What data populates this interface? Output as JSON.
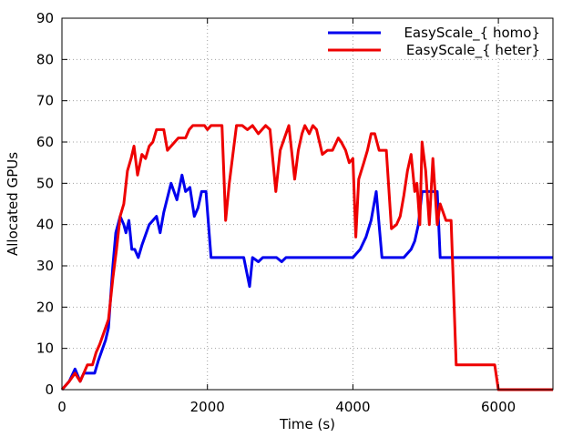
{
  "chart_data": {
    "type": "line",
    "xlabel": "Time (s)",
    "ylabel": "Allocated GPUs",
    "xlim": [
      0,
      6750
    ],
    "ylim": [
      0,
      90
    ],
    "xticks": [
      0,
      2000,
      4000,
      6000
    ],
    "yticks": [
      0,
      10,
      20,
      30,
      40,
      50,
      60,
      70,
      80,
      90
    ],
    "grid": "dotted",
    "legend_position": "top-right",
    "series": [
      {
        "name": "EasyScale_{ homo}",
        "color": "#0000ee",
        "points": [
          [
            0,
            0
          ],
          [
            100,
            2
          ],
          [
            180,
            5
          ],
          [
            250,
            2
          ],
          [
            300,
            4
          ],
          [
            450,
            4
          ],
          [
            500,
            7
          ],
          [
            600,
            12
          ],
          [
            640,
            15
          ],
          [
            700,
            30
          ],
          [
            740,
            38
          ],
          [
            800,
            42
          ],
          [
            850,
            40
          ],
          [
            880,
            38
          ],
          [
            920,
            41
          ],
          [
            960,
            34
          ],
          [
            1000,
            34
          ],
          [
            1050,
            32
          ],
          [
            1100,
            35
          ],
          [
            1200,
            40
          ],
          [
            1300,
            42
          ],
          [
            1350,
            38
          ],
          [
            1400,
            43
          ],
          [
            1500,
            50
          ],
          [
            1580,
            46
          ],
          [
            1650,
            52
          ],
          [
            1700,
            48
          ],
          [
            1760,
            49
          ],
          [
            1820,
            42
          ],
          [
            1870,
            44
          ],
          [
            1920,
            48
          ],
          [
            1980,
            48
          ],
          [
            2050,
            32
          ],
          [
            2500,
            32
          ],
          [
            2580,
            25
          ],
          [
            2620,
            32
          ],
          [
            2700,
            31
          ],
          [
            2760,
            32
          ],
          [
            2950,
            32
          ],
          [
            3020,
            31
          ],
          [
            3080,
            32
          ],
          [
            4000,
            32
          ],
          [
            4100,
            34
          ],
          [
            4180,
            37
          ],
          [
            4250,
            41
          ],
          [
            4320,
            48
          ],
          [
            4400,
            32
          ],
          [
            4700,
            32
          ],
          [
            4750,
            33
          ],
          [
            4800,
            34
          ],
          [
            4850,
            36
          ],
          [
            4900,
            40
          ],
          [
            4950,
            48
          ],
          [
            5000,
            48
          ],
          [
            5050,
            48
          ],
          [
            5100,
            48
          ],
          [
            5160,
            48
          ],
          [
            5200,
            32
          ],
          [
            6750,
            32
          ]
        ]
      },
      {
        "name": "EasyScale_{ heter}",
        "color": "#ee0000",
        "points": [
          [
            0,
            0
          ],
          [
            100,
            2
          ],
          [
            180,
            4
          ],
          [
            250,
            2
          ],
          [
            300,
            4
          ],
          [
            350,
            6
          ],
          [
            420,
            6
          ],
          [
            470,
            9
          ],
          [
            520,
            11
          ],
          [
            580,
            14
          ],
          [
            640,
            17
          ],
          [
            700,
            27
          ],
          [
            750,
            34
          ],
          [
            800,
            42
          ],
          [
            850,
            45
          ],
          [
            900,
            53
          ],
          [
            950,
            56
          ],
          [
            990,
            59
          ],
          [
            1040,
            52
          ],
          [
            1100,
            57
          ],
          [
            1150,
            56
          ],
          [
            1200,
            59
          ],
          [
            1250,
            60
          ],
          [
            1300,
            63
          ],
          [
            1400,
            63
          ],
          [
            1450,
            58
          ],
          [
            1500,
            59
          ],
          [
            1600,
            61
          ],
          [
            1700,
            61
          ],
          [
            1750,
            63
          ],
          [
            1800,
            64
          ],
          [
            1900,
            64
          ],
          [
            1960,
            64
          ],
          [
            2000,
            63
          ],
          [
            2050,
            64
          ],
          [
            2200,
            64
          ],
          [
            2250,
            41
          ],
          [
            2300,
            50
          ],
          [
            2400,
            64
          ],
          [
            2480,
            64
          ],
          [
            2550,
            63
          ],
          [
            2620,
            64
          ],
          [
            2700,
            62
          ],
          [
            2750,
            63
          ],
          [
            2800,
            64
          ],
          [
            2860,
            63
          ],
          [
            2940,
            48
          ],
          [
            3000,
            58
          ],
          [
            3060,
            61
          ],
          [
            3120,
            64
          ],
          [
            3200,
            51
          ],
          [
            3250,
            58
          ],
          [
            3300,
            62
          ],
          [
            3340,
            64
          ],
          [
            3400,
            62
          ],
          [
            3450,
            64
          ],
          [
            3500,
            63
          ],
          [
            3580,
            57
          ],
          [
            3650,
            58
          ],
          [
            3720,
            58
          ],
          [
            3800,
            61
          ],
          [
            3840,
            60
          ],
          [
            3900,
            58
          ],
          [
            3950,
            55
          ],
          [
            4000,
            56
          ],
          [
            4040,
            37
          ],
          [
            4080,
            51
          ],
          [
            4150,
            55
          ],
          [
            4200,
            58
          ],
          [
            4250,
            62
          ],
          [
            4300,
            62
          ],
          [
            4360,
            58
          ],
          [
            4460,
            58
          ],
          [
            4530,
            39
          ],
          [
            4600,
            40
          ],
          [
            4650,
            42
          ],
          [
            4700,
            47
          ],
          [
            4750,
            53
          ],
          [
            4800,
            57
          ],
          [
            4850,
            48
          ],
          [
            4880,
            50
          ],
          [
            4920,
            40
          ],
          [
            4950,
            60
          ],
          [
            5000,
            53
          ],
          [
            5050,
            40
          ],
          [
            5100,
            56
          ],
          [
            5160,
            40
          ],
          [
            5200,
            45
          ],
          [
            5280,
            41
          ],
          [
            5350,
            41
          ],
          [
            5420,
            6
          ],
          [
            5550,
            6
          ],
          [
            5950,
            6
          ],
          [
            6000,
            0
          ],
          [
            6750,
            0
          ]
        ]
      }
    ]
  }
}
